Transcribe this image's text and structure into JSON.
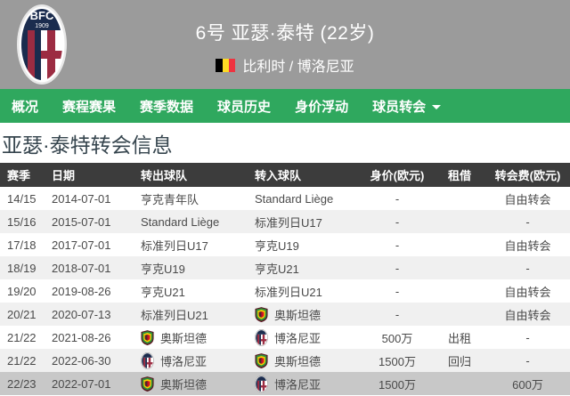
{
  "colors": {
    "accent_green": "#2fa85e",
    "header_gray": "#9b9b9b",
    "table_header_bg": "#3c3c3c",
    "row_alt_bg": "#f0f0f0",
    "highlight_row_bg": "#c8c8c8",
    "flag_black": "#000000",
    "flag_yellow": "#fdda24",
    "flag_red": "#ef3340"
  },
  "header": {
    "club_crest_icon": "bologna-crest-icon",
    "title": "6号 亚瑟·泰特 (22岁)",
    "flag_icon": "belgium-flag-icon",
    "nationality_club": "比利时 / 博洛尼亚"
  },
  "nav": {
    "items": [
      {
        "label": "概况",
        "has_dropdown": false
      },
      {
        "label": "赛程赛果",
        "has_dropdown": false
      },
      {
        "label": "赛季数据",
        "has_dropdown": false
      },
      {
        "label": "球员历史",
        "has_dropdown": false
      },
      {
        "label": "身价浮动",
        "has_dropdown": false
      },
      {
        "label": "球员转会",
        "has_dropdown": true
      }
    ]
  },
  "section_title": "亚瑟·泰特转会信息",
  "table": {
    "columns": [
      "赛季",
      "日期",
      "转出球队",
      "转入球队",
      "身价(欧元)",
      "租借",
      "转会费(欧元)"
    ],
    "rows": [
      {
        "season": "14/15",
        "date": "2014-07-01",
        "from": {
          "name": "亨克青年队",
          "logo": null
        },
        "to": {
          "name": "Standard Liège",
          "logo": null
        },
        "value": "-",
        "loan": "",
        "fee": "自由转会",
        "highlighted": false
      },
      {
        "season": "15/16",
        "date": "2015-07-01",
        "from": {
          "name": "Standard Liège",
          "logo": null
        },
        "to": {
          "name": "标准列日U17",
          "logo": null
        },
        "value": "-",
        "loan": "",
        "fee": "-",
        "highlighted": false
      },
      {
        "season": "17/18",
        "date": "2017-07-01",
        "from": {
          "name": "标准列日U17",
          "logo": null
        },
        "to": {
          "name": "亨克U19",
          "logo": null
        },
        "value": "-",
        "loan": "",
        "fee": "自由转会",
        "highlighted": false
      },
      {
        "season": "18/19",
        "date": "2018-07-01",
        "from": {
          "name": "亨克U19",
          "logo": null
        },
        "to": {
          "name": "亨克U21",
          "logo": null
        },
        "value": "-",
        "loan": "",
        "fee": "-",
        "highlighted": false
      },
      {
        "season": "19/20",
        "date": "2019-08-26",
        "from": {
          "name": "亨克U21",
          "logo": null
        },
        "to": {
          "name": "标准列日U21",
          "logo": null
        },
        "value": "-",
        "loan": "",
        "fee": "自由转会",
        "highlighted": false
      },
      {
        "season": "20/21",
        "date": "2020-07-13",
        "from": {
          "name": "标准列日U21",
          "logo": null
        },
        "to": {
          "name": "奥斯坦德",
          "logo": "oostende"
        },
        "value": "-",
        "loan": "",
        "fee": "自由转会",
        "highlighted": false
      },
      {
        "season": "21/22",
        "date": "2021-08-26",
        "from": {
          "name": "奥斯坦德",
          "logo": "oostende"
        },
        "to": {
          "name": "博洛尼亚",
          "logo": "bologna"
        },
        "value": "500万",
        "loan": "出租",
        "fee": "-",
        "highlighted": false
      },
      {
        "season": "21/22",
        "date": "2022-06-30",
        "from": {
          "name": "博洛尼亚",
          "logo": "bologna"
        },
        "to": {
          "name": "奥斯坦德",
          "logo": "oostende"
        },
        "value": "1500万",
        "loan": "回归",
        "fee": "-",
        "highlighted": false
      },
      {
        "season": "22/23",
        "date": "2022-07-01",
        "from": {
          "name": "奥斯坦德",
          "logo": "oostende"
        },
        "to": {
          "name": "博洛尼亚",
          "logo": "bologna"
        },
        "value": "1500万",
        "loan": "",
        "fee": "600万",
        "highlighted": true
      }
    ]
  }
}
